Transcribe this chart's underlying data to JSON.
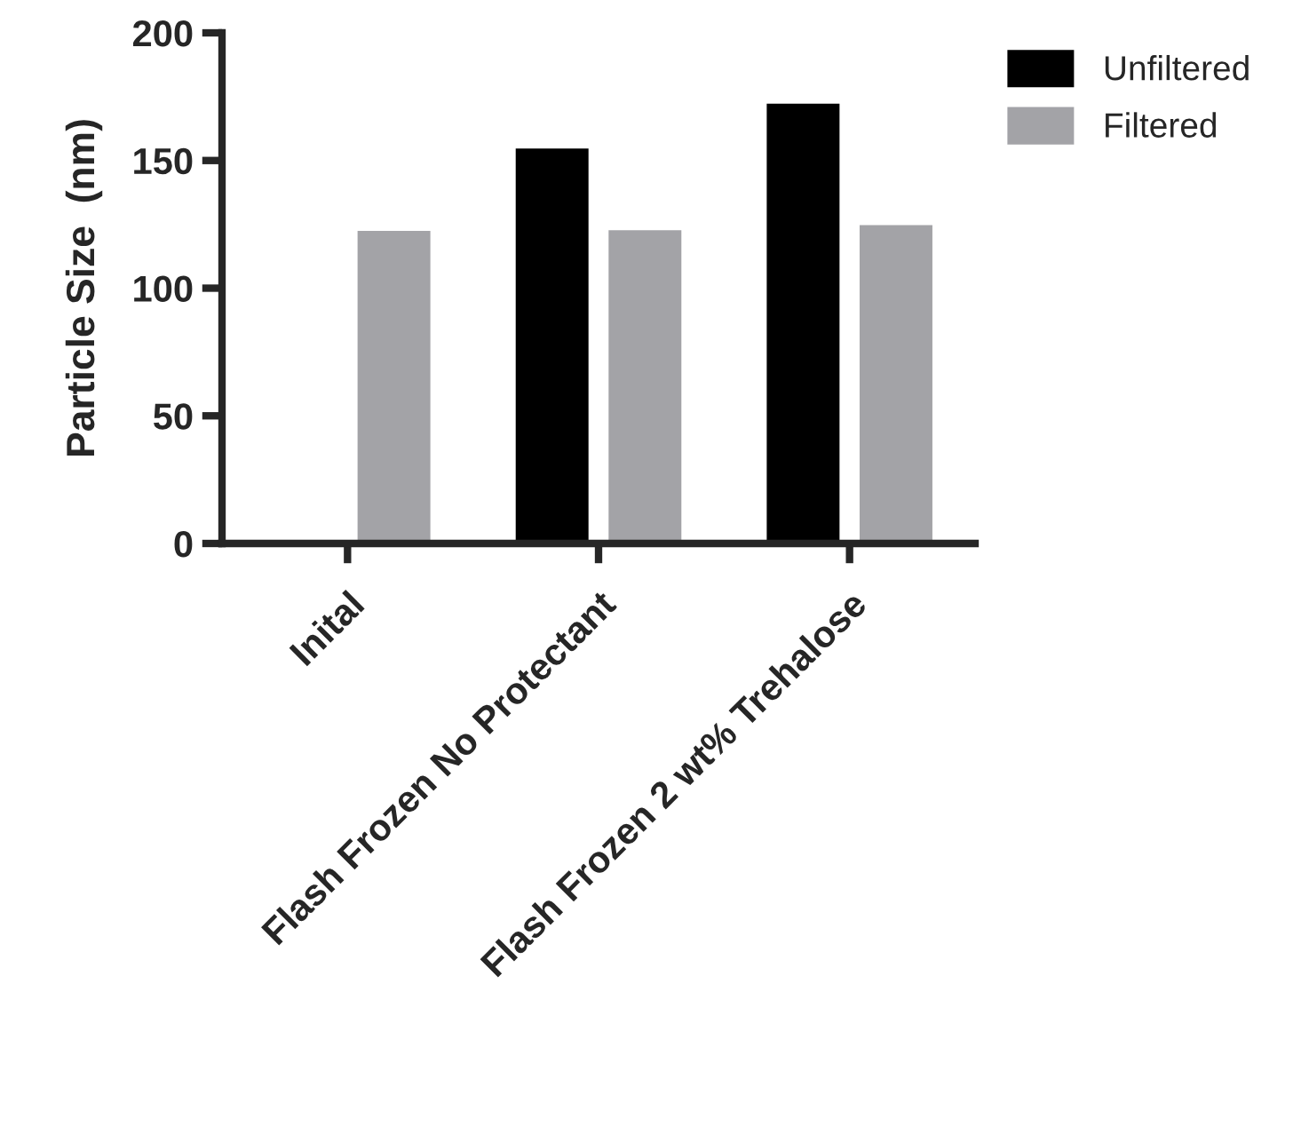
{
  "chart_data": {
    "type": "bar",
    "ylabel": "Particle Size  (nm)",
    "categories": [
      "Inital",
      "Flash Frozen No Protectant",
      "Flash Frozen 2 wt% Trehalose"
    ],
    "series": [
      {
        "name": "Unfiltered",
        "color": "#000000",
        "values": [
          null,
          154.7,
          172.3
        ]
      },
      {
        "name": "Filtered",
        "color": "#a3a3a7",
        "values": [
          122.4,
          122.7,
          124.7
        ]
      }
    ],
    "ylim": [
      0,
      200
    ],
    "yticks": [
      0,
      50,
      100,
      150,
      200
    ],
    "grid": false,
    "legend": "top right"
  }
}
